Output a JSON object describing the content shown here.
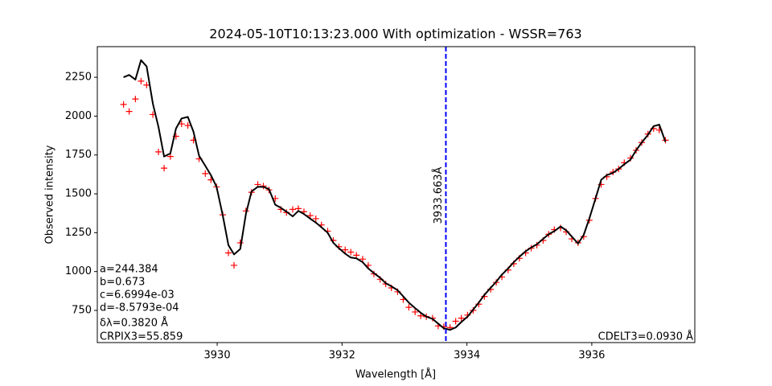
{
  "chart_data": {
    "type": "line",
    "title": "2024-05-10T10:13:23.000 With optimization - WSSR=763",
    "x_label": "Wavelength [Å]",
    "y_label": "Observed intensity",
    "x": [
      3928.5,
      3928.59,
      3928.69,
      3928.78,
      3928.87,
      3928.97,
      3929.06,
      3929.15,
      3929.25,
      3929.34,
      3929.43,
      3929.53,
      3929.62,
      3929.71,
      3929.81,
      3929.9,
      3929.99,
      3930.09,
      3930.18,
      3930.27,
      3930.37,
      3930.46,
      3930.55,
      3930.65,
      3930.74,
      3930.83,
      3930.93,
      3931.02,
      3931.11,
      3931.21,
      3931.3,
      3931.39,
      3931.49,
      3931.58,
      3931.67,
      3931.77,
      3931.86,
      3931.95,
      3932.05,
      3932.14,
      3932.23,
      3932.33,
      3932.42,
      3932.51,
      3932.61,
      3932.7,
      3932.79,
      3932.89,
      3932.98,
      3933.07,
      3933.17,
      3933.26,
      3933.35,
      3933.45,
      3933.54,
      3933.63,
      3933.73,
      3933.82,
      3933.91,
      3934.01,
      3934.1,
      3934.19,
      3934.28,
      3934.38,
      3934.47,
      3934.56,
      3934.66,
      3934.75,
      3934.84,
      3934.94,
      3935.03,
      3935.12,
      3935.22,
      3935.31,
      3935.4,
      3935.5,
      3935.59,
      3935.68,
      3935.78,
      3935.87,
      3935.96,
      3936.06,
      3936.15,
      3936.24,
      3936.34,
      3936.43,
      3936.52,
      3936.62,
      3936.71,
      3936.8,
      3936.9,
      3936.99,
      3937.08,
      3937.18
    ],
    "series": [
      {
        "color": "#ff0000",
        "marker": "+",
        "values": [
          2075,
          2030,
          2110,
          2225,
          2200,
          2010,
          1770,
          1665,
          1740,
          1870,
          1950,
          1940,
          1845,
          1725,
          1630,
          1590,
          1545,
          1365,
          1120,
          1040,
          1185,
          1390,
          1510,
          1560,
          1550,
          1525,
          1470,
          1400,
          1380,
          1400,
          1405,
          1385,
          1360,
          1340,
          1300,
          1260,
          1200,
          1160,
          1140,
          1125,
          1105,
          1080,
          1040,
          985,
          950,
          920,
          895,
          870,
          820,
          770,
          740,
          715,
          710,
          700,
          650,
          645,
          640,
          680,
          700,
          720,
          750,
          790,
          840,
          885,
          930,
          965,
          1010,
          1050,
          1085,
          1120,
          1150,
          1170,
          1200,
          1240,
          1270,
          1280,
          1255,
          1210,
          1185,
          1225,
          1330,
          1470,
          1560,
          1610,
          1640,
          1660,
          1700,
          1730,
          1780,
          1830,
          1885,
          1920,
          1910,
          1845
        ]
      },
      {
        "color": "#000000",
        "marker": "line",
        "values": [
          2250,
          2265,
          2235,
          2360,
          2320,
          2080,
          1930,
          1740,
          1760,
          1920,
          1985,
          1995,
          1900,
          1745,
          1680,
          1620,
          1545,
          1360,
          1170,
          1110,
          1145,
          1370,
          1515,
          1545,
          1545,
          1530,
          1430,
          1410,
          1385,
          1355,
          1390,
          1370,
          1340,
          1315,
          1285,
          1250,
          1185,
          1150,
          1115,
          1090,
          1085,
          1060,
          1020,
          990,
          960,
          925,
          905,
          880,
          840,
          800,
          765,
          735,
          710,
          695,
          665,
          635,
          625,
          640,
          675,
          710,
          755,
          800,
          850,
          895,
          935,
          980,
          1020,
          1060,
          1095,
          1130,
          1155,
          1175,
          1210,
          1240,
          1260,
          1290,
          1265,
          1225,
          1180,
          1235,
          1340,
          1470,
          1590,
          1620,
          1635,
          1660,
          1690,
          1720,
          1780,
          1830,
          1880,
          1935,
          1945,
          1835
        ]
      }
    ],
    "vline": {
      "x": 3933.663,
      "color": "#0000ff",
      "label": "3933.663Å"
    },
    "annotations_left": [
      "a=244.384",
      "b=0.673",
      "c=6.6994e-03",
      "d=-8.5793e-04",
      "δλ=0.3820 Å",
      "CRPIX3=55.859"
    ],
    "annotation_right": "CDELT3=0.0930 Å",
    "xlim": [
      3928.08,
      3937.65
    ],
    "ylim": [
      543,
      2447
    ],
    "xticks": [
      3930,
      3932,
      3934,
      3936
    ],
    "yticks": [
      750,
      1000,
      1250,
      1500,
      1750,
      2000,
      2250
    ],
    "grid": false
  }
}
